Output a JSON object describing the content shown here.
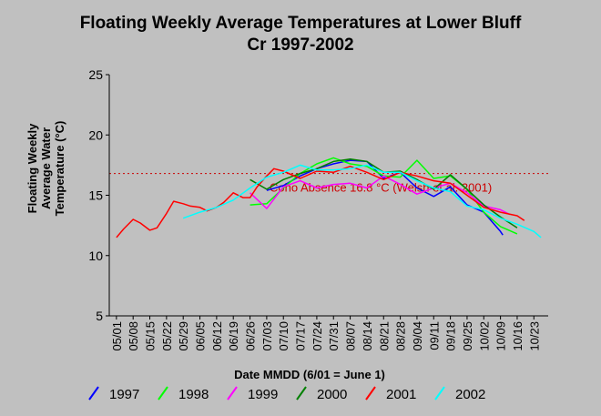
{
  "chart_data": {
    "type": "line",
    "title_line1": "Floating Weekly Average Temperatures at Lower Bluff",
    "title_line2": "Cr 1997-2002",
    "xlabel": "Date MMDD (6/01 = June 1)",
    "ylabel_lines": [
      "Floating Weekly",
      "Average Water",
      "Temperature (°C)"
    ],
    "ylim": [
      5,
      25
    ],
    "yticks": [
      5,
      10,
      15,
      20,
      25
    ],
    "xlim": [
      -3,
      181
    ],
    "x_tick_values": [
      0,
      7,
      14,
      21,
      28,
      35,
      42,
      49,
      56,
      63,
      70,
      77,
      84,
      91,
      98,
      105,
      112,
      119,
      126,
      133,
      140,
      147,
      154,
      161,
      168,
      175
    ],
    "x_tick_labels": [
      "05/01",
      "05/08",
      "05/15",
      "05/22",
      "05/29",
      "06/05",
      "06/12",
      "06/19",
      "06/26",
      "07/03",
      "07/10",
      "07/17",
      "07/24",
      "07/31",
      "08/07",
      "08/14",
      "08/21",
      "08/28",
      "09/04",
      "09/11",
      "09/18",
      "09/25",
      "10/02",
      "10/09",
      "10/16",
      "10/23"
    ],
    "threshold": {
      "value": 16.8,
      "label": "Coho Absence 16.8 °C (Welsh et al. 2001)",
      "color": "#cc0000"
    },
    "grid": false,
    "legend_position": "bottom",
    "series": [
      {
        "name": "1997",
        "color": "#0000ff",
        "x": [
          63,
          70,
          77,
          84,
          91,
          98,
          105,
          112,
          119,
          126,
          133,
          140,
          147,
          154,
          161,
          162
        ],
        "y": [
          15.4,
          15.8,
          16.6,
          17.2,
          17.6,
          17.9,
          17.8,
          16.4,
          16.9,
          15.6,
          14.9,
          15.7,
          14.2,
          13.6,
          12.0,
          11.7
        ]
      },
      {
        "name": "1998",
        "color": "#00ff00",
        "x": [
          56,
          63,
          70,
          77,
          84,
          91,
          98,
          105,
          112,
          119,
          126,
          133,
          140,
          147,
          154,
          161,
          168
        ],
        "y": [
          14.2,
          14.3,
          15.6,
          16.8,
          17.6,
          18.1,
          17.6,
          17.4,
          16.6,
          16.5,
          17.9,
          16.4,
          16.6,
          15.5,
          13.6,
          12.4,
          11.8
        ]
      },
      {
        "name": "1999",
        "color": "#ff00ff",
        "x": [
          56,
          63,
          70,
          77,
          84,
          91,
          98,
          105,
          112,
          119,
          126,
          133,
          140,
          147,
          154,
          161,
          165
        ],
        "y": [
          15.2,
          13.9,
          15.7,
          16.2,
          15.6,
          15.9,
          16.0,
          15.6,
          16.6,
          15.9,
          15.1,
          15.6,
          16.0,
          15.2,
          14.1,
          13.8,
          13.4
        ]
      },
      {
        "name": "2000",
        "color": "#008000",
        "x": [
          56,
          63,
          70,
          77,
          84,
          91,
          98,
          105,
          112,
          119,
          126,
          133,
          140,
          147,
          154,
          161,
          168
        ],
        "y": [
          16.3,
          15.5,
          16.3,
          16.8,
          17.2,
          17.8,
          18.0,
          17.8,
          16.9,
          17.0,
          16.3,
          15.5,
          16.7,
          15.5,
          14.2,
          13.2,
          12.3
        ]
      },
      {
        "name": "2001",
        "color": "#ff0000",
        "x": [
          0,
          3,
          7,
          10,
          14,
          17,
          21,
          24,
          28,
          31,
          35,
          38,
          42,
          45,
          49,
          53,
          56,
          59,
          63,
          66,
          70,
          77,
          84,
          91,
          98,
          105,
          112,
          119,
          126,
          133,
          140,
          147,
          154,
          161,
          168,
          171
        ],
        "y": [
          11.5,
          12.2,
          13.0,
          12.7,
          12.1,
          12.3,
          13.5,
          14.5,
          14.3,
          14.1,
          14.0,
          13.7,
          14.0,
          14.4,
          15.2,
          14.8,
          14.8,
          15.7,
          16.6,
          17.2,
          17.0,
          16.4,
          17.0,
          16.9,
          17.4,
          16.9,
          16.3,
          16.9,
          16.6,
          16.2,
          16.0,
          15.0,
          14.0,
          13.6,
          13.3,
          12.9
        ]
      },
      {
        "name": "2002",
        "color": "#00ffff",
        "x": [
          28,
          35,
          42,
          49,
          56,
          63,
          70,
          77,
          84,
          91,
          98,
          105,
          112,
          119,
          126,
          133,
          140,
          147,
          154,
          161,
          168,
          175,
          178
        ],
        "y": [
          13.1,
          13.6,
          14.0,
          14.6,
          15.6,
          16.5,
          16.9,
          17.5,
          17.1,
          17.1,
          17.2,
          17.5,
          16.9,
          16.9,
          16.2,
          15.6,
          15.3,
          14.1,
          13.8,
          13.1,
          12.6,
          12.0,
          11.5
        ]
      }
    ]
  },
  "legend": {
    "labels": [
      "1997",
      "1998",
      "1999",
      "2000",
      "2001",
      "2002"
    ]
  }
}
